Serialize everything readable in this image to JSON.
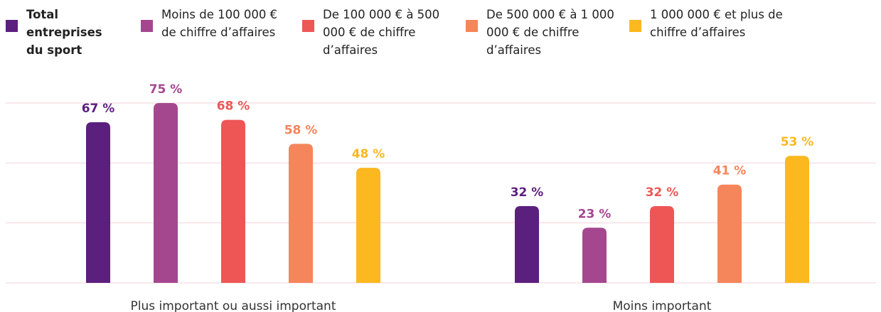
{
  "chart_data": {
    "type": "bar",
    "categories": [
      "Plus important ou aussi important",
      "Moins important"
    ],
    "series": [
      {
        "name": "Total entreprises du sport",
        "color": "#5b1f7e",
        "values": [
          67,
          32
        ],
        "value_labels": [
          "67 %",
          "32 %"
        ]
      },
      {
        "name": "Moins de 100 000 € de chiffre d’affaires",
        "color": "#a5478e",
        "values": [
          75,
          23
        ],
        "value_labels": [
          "75 %",
          "23 %"
        ]
      },
      {
        "name": "De 100 000 € à 500 000 € de chiffre d’affaires",
        "color": "#ee5656",
        "values": [
          68,
          32
        ],
        "value_labels": [
          "68 %",
          "32 %"
        ]
      },
      {
        "name": "De 500 000 € à 1 000 000 € de chiffre d’affaires",
        "color": "#f5855a",
        "values": [
          58,
          41
        ],
        "value_labels": [
          "58 %",
          "41 %"
        ]
      },
      {
        "name": "1 000 000 € et plus de chiffre d’affaires",
        "color": "#fbb81f",
        "values": [
          48,
          53
        ],
        "value_labels": [
          "48 %",
          "53 %"
        ]
      }
    ],
    "ylim": [
      0,
      75
    ],
    "yticks": [
      0,
      25,
      50,
      75
    ],
    "grid": true,
    "legend": "top"
  }
}
